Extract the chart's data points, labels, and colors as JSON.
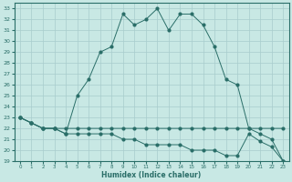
{
  "xlabel": "Humidex (Indice chaleur)",
  "ylabel": "",
  "bg_color": "#c8e8e4",
  "grid_color": "#a8cccc",
  "line_color": "#2a6e68",
  "xlim": [
    -0.5,
    23.5
  ],
  "ylim": [
    19,
    33.5
  ],
  "yticks": [
    19,
    20,
    21,
    22,
    23,
    24,
    25,
    26,
    27,
    28,
    29,
    30,
    31,
    32,
    33
  ],
  "xticks": [
    0,
    1,
    2,
    3,
    4,
    5,
    6,
    7,
    8,
    9,
    10,
    11,
    12,
    13,
    14,
    15,
    16,
    17,
    18,
    19,
    20,
    21,
    22,
    23
  ],
  "line1_x": [
    0,
    1,
    2,
    3,
    4,
    5,
    6,
    7,
    8,
    9,
    10,
    11,
    12,
    13,
    14,
    15,
    16,
    17,
    18,
    19,
    20,
    21,
    22,
    23
  ],
  "line1_y": [
    23.0,
    22.5,
    22.0,
    22.0,
    21.5,
    25.0,
    26.5,
    29.0,
    29.5,
    32.5,
    31.5,
    32.0,
    33.0,
    31.0,
    32.5,
    32.5,
    31.5,
    29.5,
    26.5,
    26.0,
    22.0,
    21.5,
    21.0,
    19.0
  ],
  "line2_x": [
    0,
    1,
    2,
    3,
    4,
    5,
    6,
    7,
    8,
    9,
    10,
    11,
    12,
    13,
    14,
    15,
    16,
    17,
    18,
    19,
    20,
    21,
    22,
    23
  ],
  "line2_y": [
    23.0,
    22.5,
    22.0,
    22.0,
    22.0,
    22.0,
    22.0,
    22.0,
    22.0,
    22.0,
    22.0,
    22.0,
    22.0,
    22.0,
    22.0,
    22.0,
    22.0,
    22.0,
    22.0,
    22.0,
    22.0,
    22.0,
    22.0,
    22.0
  ],
  "line3_x": [
    0,
    1,
    2,
    3,
    4,
    5,
    6,
    7,
    8,
    9,
    10,
    11,
    12,
    13,
    14,
    15,
    16,
    17,
    18,
    19,
    20,
    21,
    22,
    23
  ],
  "line3_y": [
    23.0,
    22.5,
    22.0,
    22.0,
    21.5,
    21.5,
    21.5,
    21.5,
    21.5,
    21.0,
    21.0,
    20.5,
    20.5,
    20.5,
    20.5,
    20.0,
    20.0,
    20.0,
    19.5,
    19.5,
    21.5,
    20.8,
    20.3,
    19.0
  ]
}
